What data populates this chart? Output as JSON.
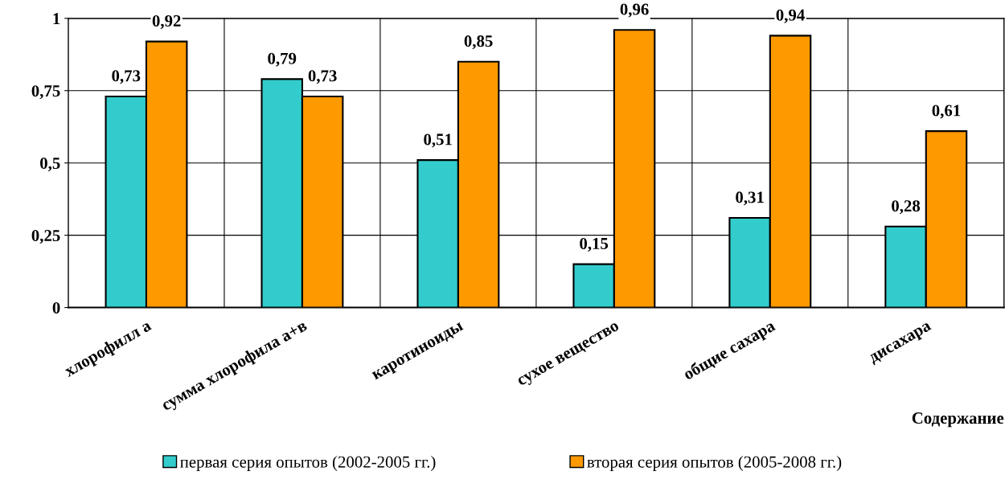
{
  "chart_data": {
    "type": "bar",
    "xlabel": "Содержание",
    "categories": [
      "хлорофилл а",
      "сумма хлорофила а+в",
      "каротиноиды",
      "сухое вещество",
      "общие сахара",
      "дисахара"
    ],
    "series": [
      {
        "name": "первая серия опытов (2002-2005 гг.)",
        "color": "#33cccc",
        "values": [
          0.73,
          0.79,
          0.51,
          0.15,
          0.31,
          0.28
        ],
        "value_labels": [
          "0,73",
          "0,79",
          "0,51",
          "0,15",
          "0,31",
          "0,28"
        ]
      },
      {
        "name": "вторая серия опытов (2005-2008 гг.)",
        "color": "#ff9900",
        "values": [
          0.92,
          0.73,
          0.85,
          0.96,
          0.94,
          0.61
        ],
        "value_labels": [
          "0,92",
          "0,73",
          "0,85",
          "0,96",
          "0,94",
          "0,61"
        ]
      }
    ],
    "ylim": [
      0,
      1
    ],
    "yticks": [
      0,
      {
        "value": 0.25,
        "label": "0,25"
      },
      {
        "value": 0.5,
        "label": "0,5"
      },
      {
        "value": 0.75,
        "label": "0,75"
      },
      1
    ],
    "grid": true,
    "legend": "bottom"
  }
}
